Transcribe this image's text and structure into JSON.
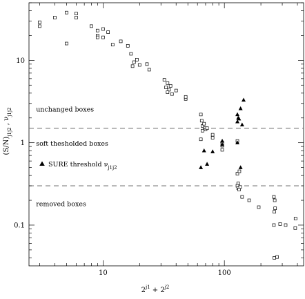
{
  "chart_data": {
    "type": "scatter",
    "x_scale": "log",
    "y_scale": "log",
    "xlim": [
      2.45,
      450
    ],
    "ylim": [
      0.032,
      50
    ],
    "xlabel_base": "2",
    "xlabel_exp1": "j1",
    "xlabel_mid": " + ",
    "xlabel_exp2": "j2",
    "ylabel_main": "(S/N)",
    "ylabel_sub1": "j1j2",
    "ylabel_sep": " , ν",
    "ylabel_sub2": "j1j2",
    "x_ticks": [
      {
        "value": 10,
        "label": "10"
      },
      {
        "value": 100,
        "label": "100"
      }
    ],
    "y_ticks": [
      {
        "value": 0.1,
        "label": "0.1"
      },
      {
        "value": 1,
        "label": "1"
      },
      {
        "value": 10,
        "label": "10"
      }
    ],
    "reference_lines": [
      {
        "y": 1.5,
        "style": "dashed"
      },
      {
        "y": 0.3,
        "style": "dashed"
      }
    ],
    "annotations": [
      {
        "text": "unchanged boxes",
        "x": 2.8,
        "y": 2.4
      },
      {
        "text": "soft thesholded boxes",
        "x": 2.8,
        "y": 0.92
      },
      {
        "text": "removed boxes",
        "x": 2.8,
        "y": 0.17
      }
    ],
    "legend_label": "SURE threshold ν",
    "legend_sub": "j1j2",
    "series": [
      {
        "marker": "open-square",
        "points": [
          [
            3,
            29
          ],
          [
            3,
            26
          ],
          [
            4,
            33
          ],
          [
            5,
            38
          ],
          [
            6,
            37
          ],
          [
            6,
            33
          ],
          [
            5,
            16
          ],
          [
            8,
            26
          ],
          [
            9,
            23
          ],
          [
            9,
            20
          ],
          [
            9,
            19
          ],
          [
            10,
            24
          ],
          [
            10,
            19
          ],
          [
            11,
            22
          ],
          [
            12,
            15.5
          ],
          [
            14,
            17
          ],
          [
            16,
            15
          ],
          [
            17,
            12
          ],
          [
            17.5,
            8.5
          ],
          [
            18,
            9.5
          ],
          [
            19,
            10.2
          ],
          [
            20,
            8.8
          ],
          [
            23,
            9
          ],
          [
            24,
            7.7
          ],
          [
            32,
            5.8
          ],
          [
            34,
            5.3
          ],
          [
            33,
            4.7
          ],
          [
            35,
            4.4
          ],
          [
            36,
            4.9
          ],
          [
            37,
            3.9
          ],
          [
            34,
            4.1
          ],
          [
            40,
            4.3
          ],
          [
            48,
            3.4
          ],
          [
            48,
            3.6
          ],
          [
            64,
            2.2
          ],
          [
            65,
            1.85
          ],
          [
            66,
            1.6
          ],
          [
            69,
            1.5
          ],
          [
            66,
            1.4
          ],
          [
            70,
            1.45
          ],
          [
            72,
            1.5
          ],
          [
            68,
            1.7
          ],
          [
            64,
            1.1
          ],
          [
            80,
            1.15
          ],
          [
            80,
            1.25
          ],
          [
            96,
            1.0
          ],
          [
            96,
            0.92
          ],
          [
            96,
            0.82
          ],
          [
            128,
            1.05
          ],
          [
            128,
            0.42
          ],
          [
            130,
            0.32
          ],
          [
            128,
            0.3
          ],
          [
            130,
            0.28
          ],
          [
            132,
            0.27
          ],
          [
            133,
            0.45
          ],
          [
            140,
            0.22
          ],
          [
            135,
            0.29
          ],
          [
            160,
            0.2
          ],
          [
            192,
            0.165
          ],
          [
            256,
            0.22
          ],
          [
            260,
            0.2
          ],
          [
            262,
            0.16
          ],
          [
            258,
            0.145
          ],
          [
            256,
            0.1
          ],
          [
            288,
            0.103
          ],
          [
            320,
            0.1
          ],
          [
            384,
            0.092
          ],
          [
            386,
            0.12
          ],
          [
            258,
            0.04
          ],
          [
            272,
            0.041
          ]
        ]
      },
      {
        "marker": "filled-triangle",
        "points": [
          [
            64,
            0.5
          ],
          [
            68,
            0.8
          ],
          [
            72,
            0.55
          ],
          [
            80,
            0.78
          ],
          [
            96,
            0.95
          ],
          [
            96,
            1.05
          ],
          [
            128,
            2.2
          ],
          [
            130,
            2.0
          ],
          [
            128,
            1.8
          ],
          [
            132,
            1.95
          ],
          [
            136,
            2.6
          ],
          [
            140,
            1.65
          ],
          [
            144,
            3.3
          ],
          [
            128,
            1.0
          ],
          [
            136,
            0.5
          ]
        ]
      }
    ]
  }
}
